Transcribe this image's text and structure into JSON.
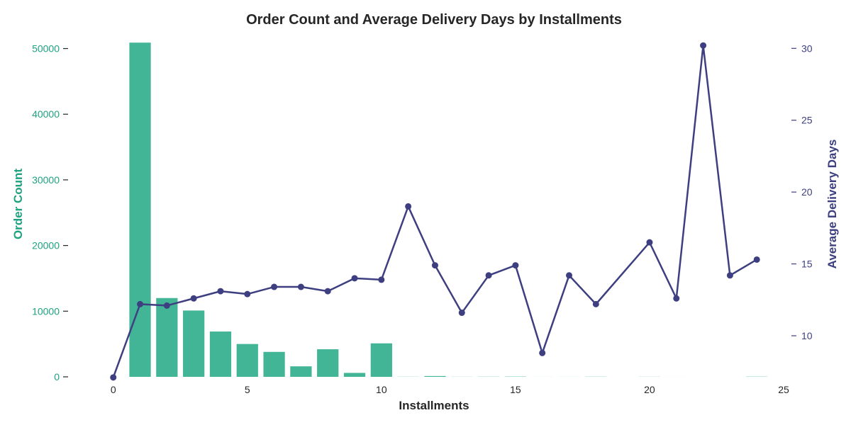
{
  "chart_data": {
    "type": "bar",
    "title": "Order Count and Average Delivery Days by Installments",
    "xlabel": "Installments",
    "ylabel": "Order Count",
    "y2label": "Average Delivery Days",
    "xlim": [
      -1.5,
      25
    ],
    "ylim": [
      0,
      52000
    ],
    "y2lim": [
      6.5,
      31.0
    ],
    "xticks": [
      "0",
      "5",
      "10",
      "15",
      "20",
      "25"
    ],
    "yticks": [
      "0",
      "10000",
      "20000",
      "30000",
      "40000",
      "50000"
    ],
    "y2ticks": [
      "10",
      "15",
      "20",
      "25",
      "30"
    ],
    "grid": false,
    "colors": {
      "bars": "#43b597",
      "line": "#3d3f80",
      "left_axis": "#1fa27f",
      "right_axis": "#3d3f80",
      "text": "#262626"
    },
    "series": [
      {
        "name": "Order Count",
        "kind": "bar",
        "axis": "left",
        "x": [
          0,
          1,
          2,
          3,
          4,
          5,
          6,
          7,
          8,
          9,
          10,
          11,
          12,
          13,
          14,
          15,
          16,
          17,
          18,
          20,
          21,
          22,
          23,
          24
        ],
        "values": [
          2,
          50900,
          12000,
          10100,
          6900,
          5000,
          3800,
          1600,
          4200,
          600,
          5100,
          20,
          120,
          15,
          25,
          40,
          5,
          8,
          25,
          15,
          3,
          1,
          1,
          30
        ]
      },
      {
        "name": "Average Delivery Days",
        "kind": "line",
        "axis": "right",
        "x": [
          0,
          1,
          2,
          3,
          4,
          5,
          6,
          7,
          8,
          9,
          10,
          11,
          12,
          13,
          14,
          15,
          16,
          17,
          18,
          20,
          21,
          22,
          23,
          24
        ],
        "values": [
          7.1,
          12.2,
          12.1,
          12.6,
          13.1,
          12.9,
          13.4,
          13.4,
          13.1,
          14.0,
          13.9,
          19.0,
          14.9,
          11.6,
          14.2,
          14.9,
          8.8,
          14.2,
          12.2,
          16.5,
          12.6,
          30.2,
          14.2,
          15.3
        ]
      }
    ]
  }
}
